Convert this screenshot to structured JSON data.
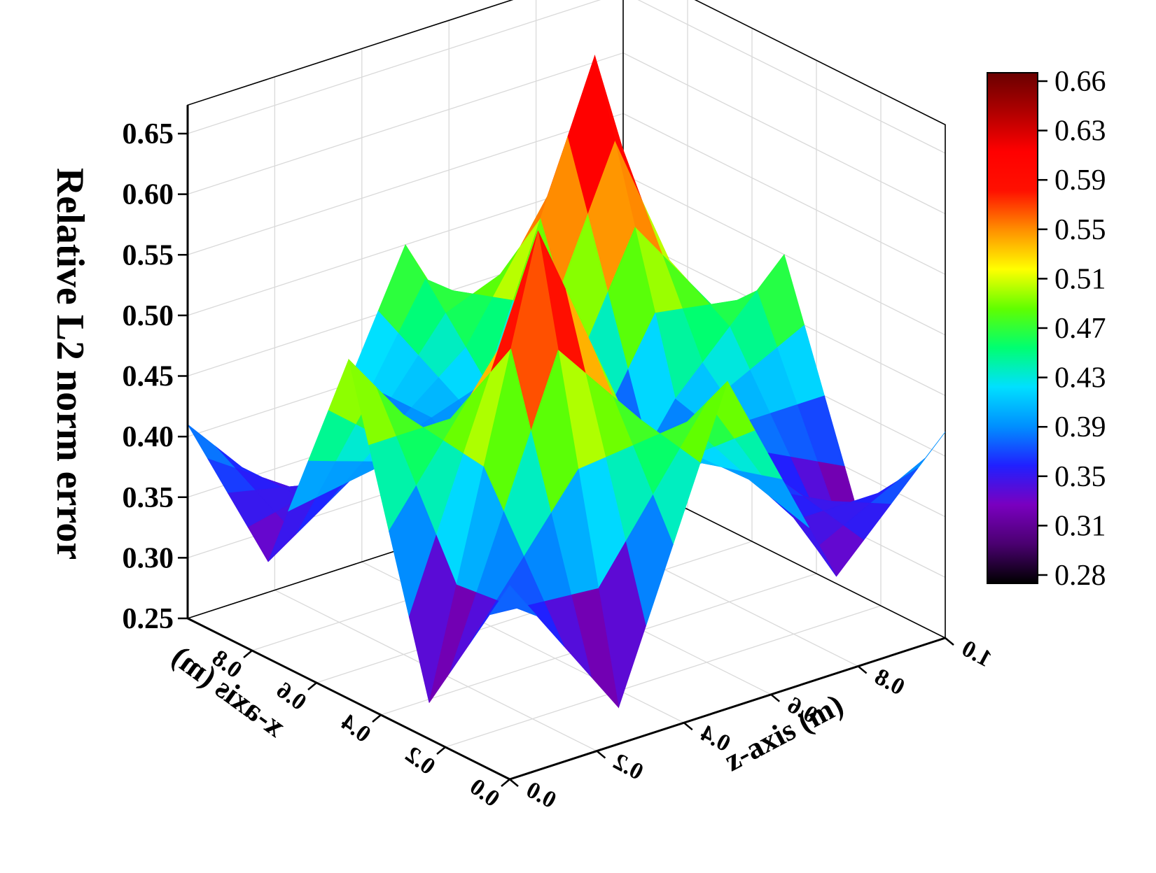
{
  "chart_data": {
    "type": "surface3d",
    "zlabel": "Relative L2 norm error",
    "xlabel": "x-axis (m)",
    "ylabel": "z-axis (m)",
    "zlim": [
      0.25,
      0.67
    ],
    "xlim": [
      0,
      1
    ],
    "ylim": [
      0,
      1
    ],
    "z_ticks": [
      "0.25",
      "0.30",
      "0.35",
      "0.40",
      "0.45",
      "0.50",
      "0.55",
      "0.60",
      "0.65"
    ],
    "x_ticks": [
      "0.0",
      "0.2",
      "0.4",
      "0.6",
      "0.8"
    ],
    "y_ticks": [
      "0.0",
      "0.2",
      "0.4",
      "0.6",
      "0.8",
      "1.0"
    ],
    "grid": true,
    "colorbar": {
      "placement": "right",
      "min": 0.28,
      "max": 0.66,
      "ticks": [
        "0.66",
        "0.63",
        "0.59",
        "0.55",
        "0.51",
        "0.47",
        "0.43",
        "0.39",
        "0.35",
        "0.31",
        "0.28"
      ],
      "stops": [
        "#000000",
        "#4a0070",
        "#7a00c0",
        "#2020ff",
        "#0090ff",
        "#00e0ff",
        "#00ff70",
        "#60ff00",
        "#ffff00",
        "#ff9000",
        "#ff1000",
        "#ff0000",
        "#b00000",
        "#6a0000",
        "#ffffff"
      ]
    },
    "surface": {
      "x": [
        0.0,
        0.25,
        0.5,
        0.75,
        1.0
      ],
      "y": [
        0.0,
        0.25,
        0.5,
        0.75,
        1.0
      ],
      "z": [
        [
          0.41,
          0.28,
          0.52,
          0.33,
          0.42
        ],
        [
          0.28,
          0.64,
          0.42,
          0.39,
          0.3
        ],
        [
          0.53,
          0.41,
          0.28,
          0.41,
          0.5
        ],
        [
          0.33,
          0.39,
          0.42,
          0.66,
          0.33
        ],
        [
          0.41,
          0.31,
          0.5,
          0.33,
          0.41
        ]
      ]
    }
  }
}
